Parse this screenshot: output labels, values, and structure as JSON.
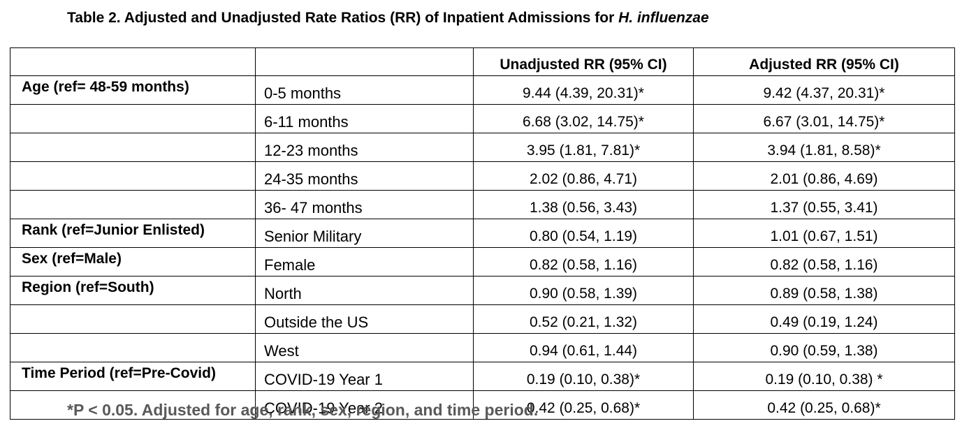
{
  "title": {
    "main": "Table 2. Adjusted and Unadjusted Rate Ratios (RR) of Inpatient Admissions for ",
    "organism": "H. influenzae"
  },
  "table": {
    "headers": [
      "",
      "",
      "Unadjusted RR (95% CI)",
      "Adjusted RR  (95% CI)"
    ],
    "rows": [
      {
        "variable": "Age (ref= 48-59 months)",
        "level": "0-5 months",
        "unadjusted": "9.44 (4.39, 20.31)*",
        "adjusted": "9.42 (4.37, 20.31)*"
      },
      {
        "variable": "",
        "level": "6-11 months",
        "unadjusted": "6.68 (3.02, 14.75)*",
        "adjusted": "6.67 (3.01, 14.75)*"
      },
      {
        "variable": "",
        "level": "12-23 months",
        "unadjusted": "3.95 (1.81, 7.81)*",
        "adjusted": "3.94 (1.81, 8.58)*"
      },
      {
        "variable": "",
        "level": "24-35 months",
        "unadjusted": "2.02 (0.86, 4.71)",
        "adjusted": "2.01 (0.86, 4.69)"
      },
      {
        "variable": "",
        "level": "36- 47 months",
        "unadjusted": "1.38 (0.56, 3.43)",
        "adjusted": "1.37 (0.55, 3.41)"
      },
      {
        "variable": "Rank (ref=Junior Enlisted)",
        "level": "Senior Military",
        "unadjusted": "0.80 (0.54, 1.19)",
        "adjusted": "1.01 (0.67, 1.51)"
      },
      {
        "variable": "Sex (ref=Male)",
        "level": "Female",
        "unadjusted": "0.82 (0.58, 1.16)",
        "adjusted": "0.82 (0.58, 1.16)"
      },
      {
        "variable": "Region (ref=South)",
        "level": "North",
        "unadjusted": "0.90 (0.58, 1.39)",
        "adjusted": "0.89 (0.58, 1.38)"
      },
      {
        "variable": "",
        "level": "Outside the US",
        "unadjusted": "0.52 (0.21, 1.32)",
        "adjusted": "0.49 (0.19, 1.24)"
      },
      {
        "variable": "",
        "level": "West",
        "unadjusted": "0.94 (0.61, 1.44)",
        "adjusted": "0.90 (0.59, 1.38)"
      },
      {
        "variable": "Time Period (ref=Pre-Covid)",
        "level": "COVID-19 Year 1",
        "unadjusted": "0.19 (0.10, 0.38)*",
        "adjusted": "0.19 (0.10, 0.38) *"
      },
      {
        "variable": "",
        "level": "COVID-19 Year 2",
        "unadjusted": "0.42 (0.25, 0.68)*",
        "adjusted": "0.42 (0.25, 0.68)*"
      }
    ]
  },
  "footnote": "*P < 0.05. Adjusted for age, rank, sex, region, and time period."
}
